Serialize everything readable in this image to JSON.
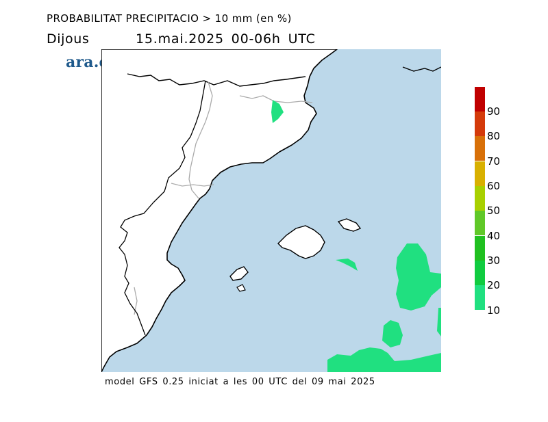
{
  "header": {
    "title": "PROBABILITAT PRECIPITACIO > 10 mm (en %)",
    "day": "Dijous",
    "datetime": "15.mai.2025 00-06h UTC"
  },
  "branding": {
    "logo_text": "ara.cat"
  },
  "footer": {
    "model_info": "model GFS 0.25 iniciat a les 00 UTC del 09 mai 2025"
  },
  "colorbar": {
    "labels": [
      "90",
      "80",
      "70",
      "60",
      "50",
      "40",
      "30",
      "20",
      "10"
    ],
    "colors": [
      "#c00000",
      "#d43a0a",
      "#d87008",
      "#d8b000",
      "#a8d000",
      "#60c828",
      "#20c020",
      "#10cc40",
      "#20e080"
    ]
  },
  "map": {
    "sea_color": "#bcd8ea",
    "land_color": "#ffffff",
    "coast_color": "#000000",
    "border_color": "#aaaaaa"
  }
}
